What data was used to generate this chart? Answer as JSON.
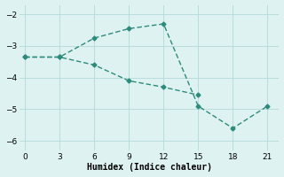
{
  "line1_x": [
    0,
    3,
    6,
    9,
    12,
    15,
    18,
    21
  ],
  "line1_y": [
    -3.35,
    -3.35,
    -2.75,
    -2.45,
    -2.3,
    -4.9,
    -5.6,
    -4.9
  ],
  "line2_x": [
    0,
    3,
    6,
    9,
    12,
    15
  ],
  "line2_y": [
    -3.35,
    -3.35,
    -3.6,
    -4.1,
    -4.3,
    -4.55
  ],
  "line_color": "#2d8b7b",
  "marker": "D",
  "markersize": 2.5,
  "linewidth": 1.0,
  "bg_color": "#dff2f2",
  "grid_color": "#b8dcdc",
  "xlabel": "Humidex (Indice chaleur)",
  "xlim": [
    -0.5,
    22
  ],
  "ylim": [
    -6.3,
    -1.7
  ],
  "xticks": [
    0,
    3,
    6,
    9,
    12,
    15,
    18,
    21
  ],
  "yticks": [
    -2,
    -3,
    -4,
    -5,
    -6
  ],
  "tick_fontsize": 6.5,
  "xlabel_fontsize": 7
}
